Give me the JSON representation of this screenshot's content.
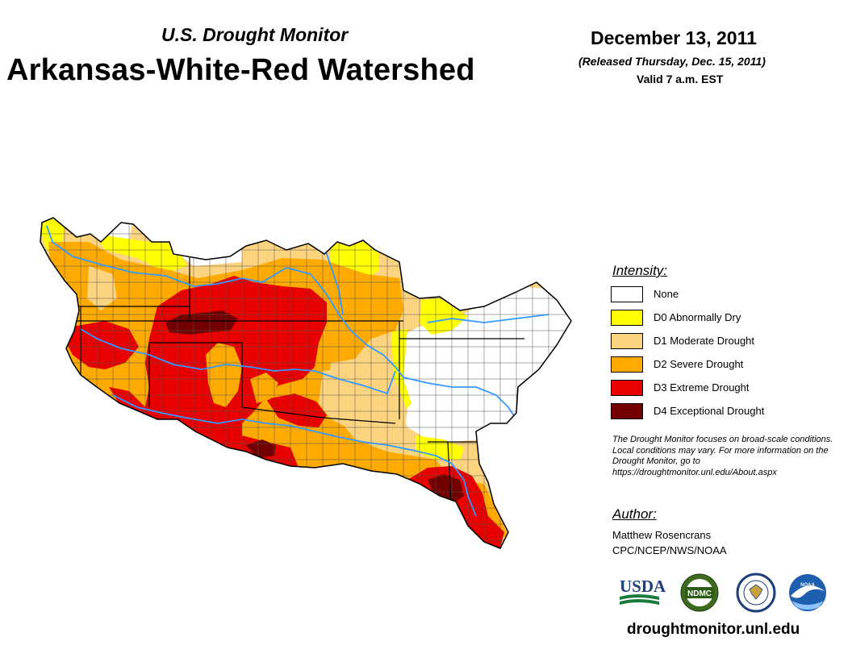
{
  "header": {
    "subtitle": "U.S. Drought Monitor",
    "title": "Arkansas-White-Red Watershed",
    "date": "December 13, 2011",
    "released": "(Released Thursday, Dec. 15, 2011)",
    "valid": "Valid 7 a.m. EST"
  },
  "legend": {
    "title": "Intensity:",
    "items": [
      {
        "label": "None",
        "color": "#ffffff"
      },
      {
        "label": "D0 Abnormally Dry",
        "color": "#ffff00"
      },
      {
        "label": "D1 Moderate Drought",
        "color": "#fcd37f"
      },
      {
        "label": "D2 Severe Drought",
        "color": "#ffaa00"
      },
      {
        "label": "D3 Extreme Drought",
        "color": "#e60000"
      },
      {
        "label": "D4 Exceptional Drought",
        "color": "#730000"
      }
    ]
  },
  "note": "The Drought Monitor focuses on broad-scale conditions. Local conditions may vary. For more information on the Drought Monitor, go to https://droughtmonitor.unl.edu/About.aspx",
  "author": {
    "title": "Author:",
    "name": "Matthew Rosencrans",
    "org": "CPC/NCEP/NWS/NOAA"
  },
  "logos": {
    "usda": "USDA",
    "ndmc": "NDMC",
    "noaa": "NOAA"
  },
  "website": "droughtmonitor.unl.edu",
  "river_color": "#3399ff"
}
